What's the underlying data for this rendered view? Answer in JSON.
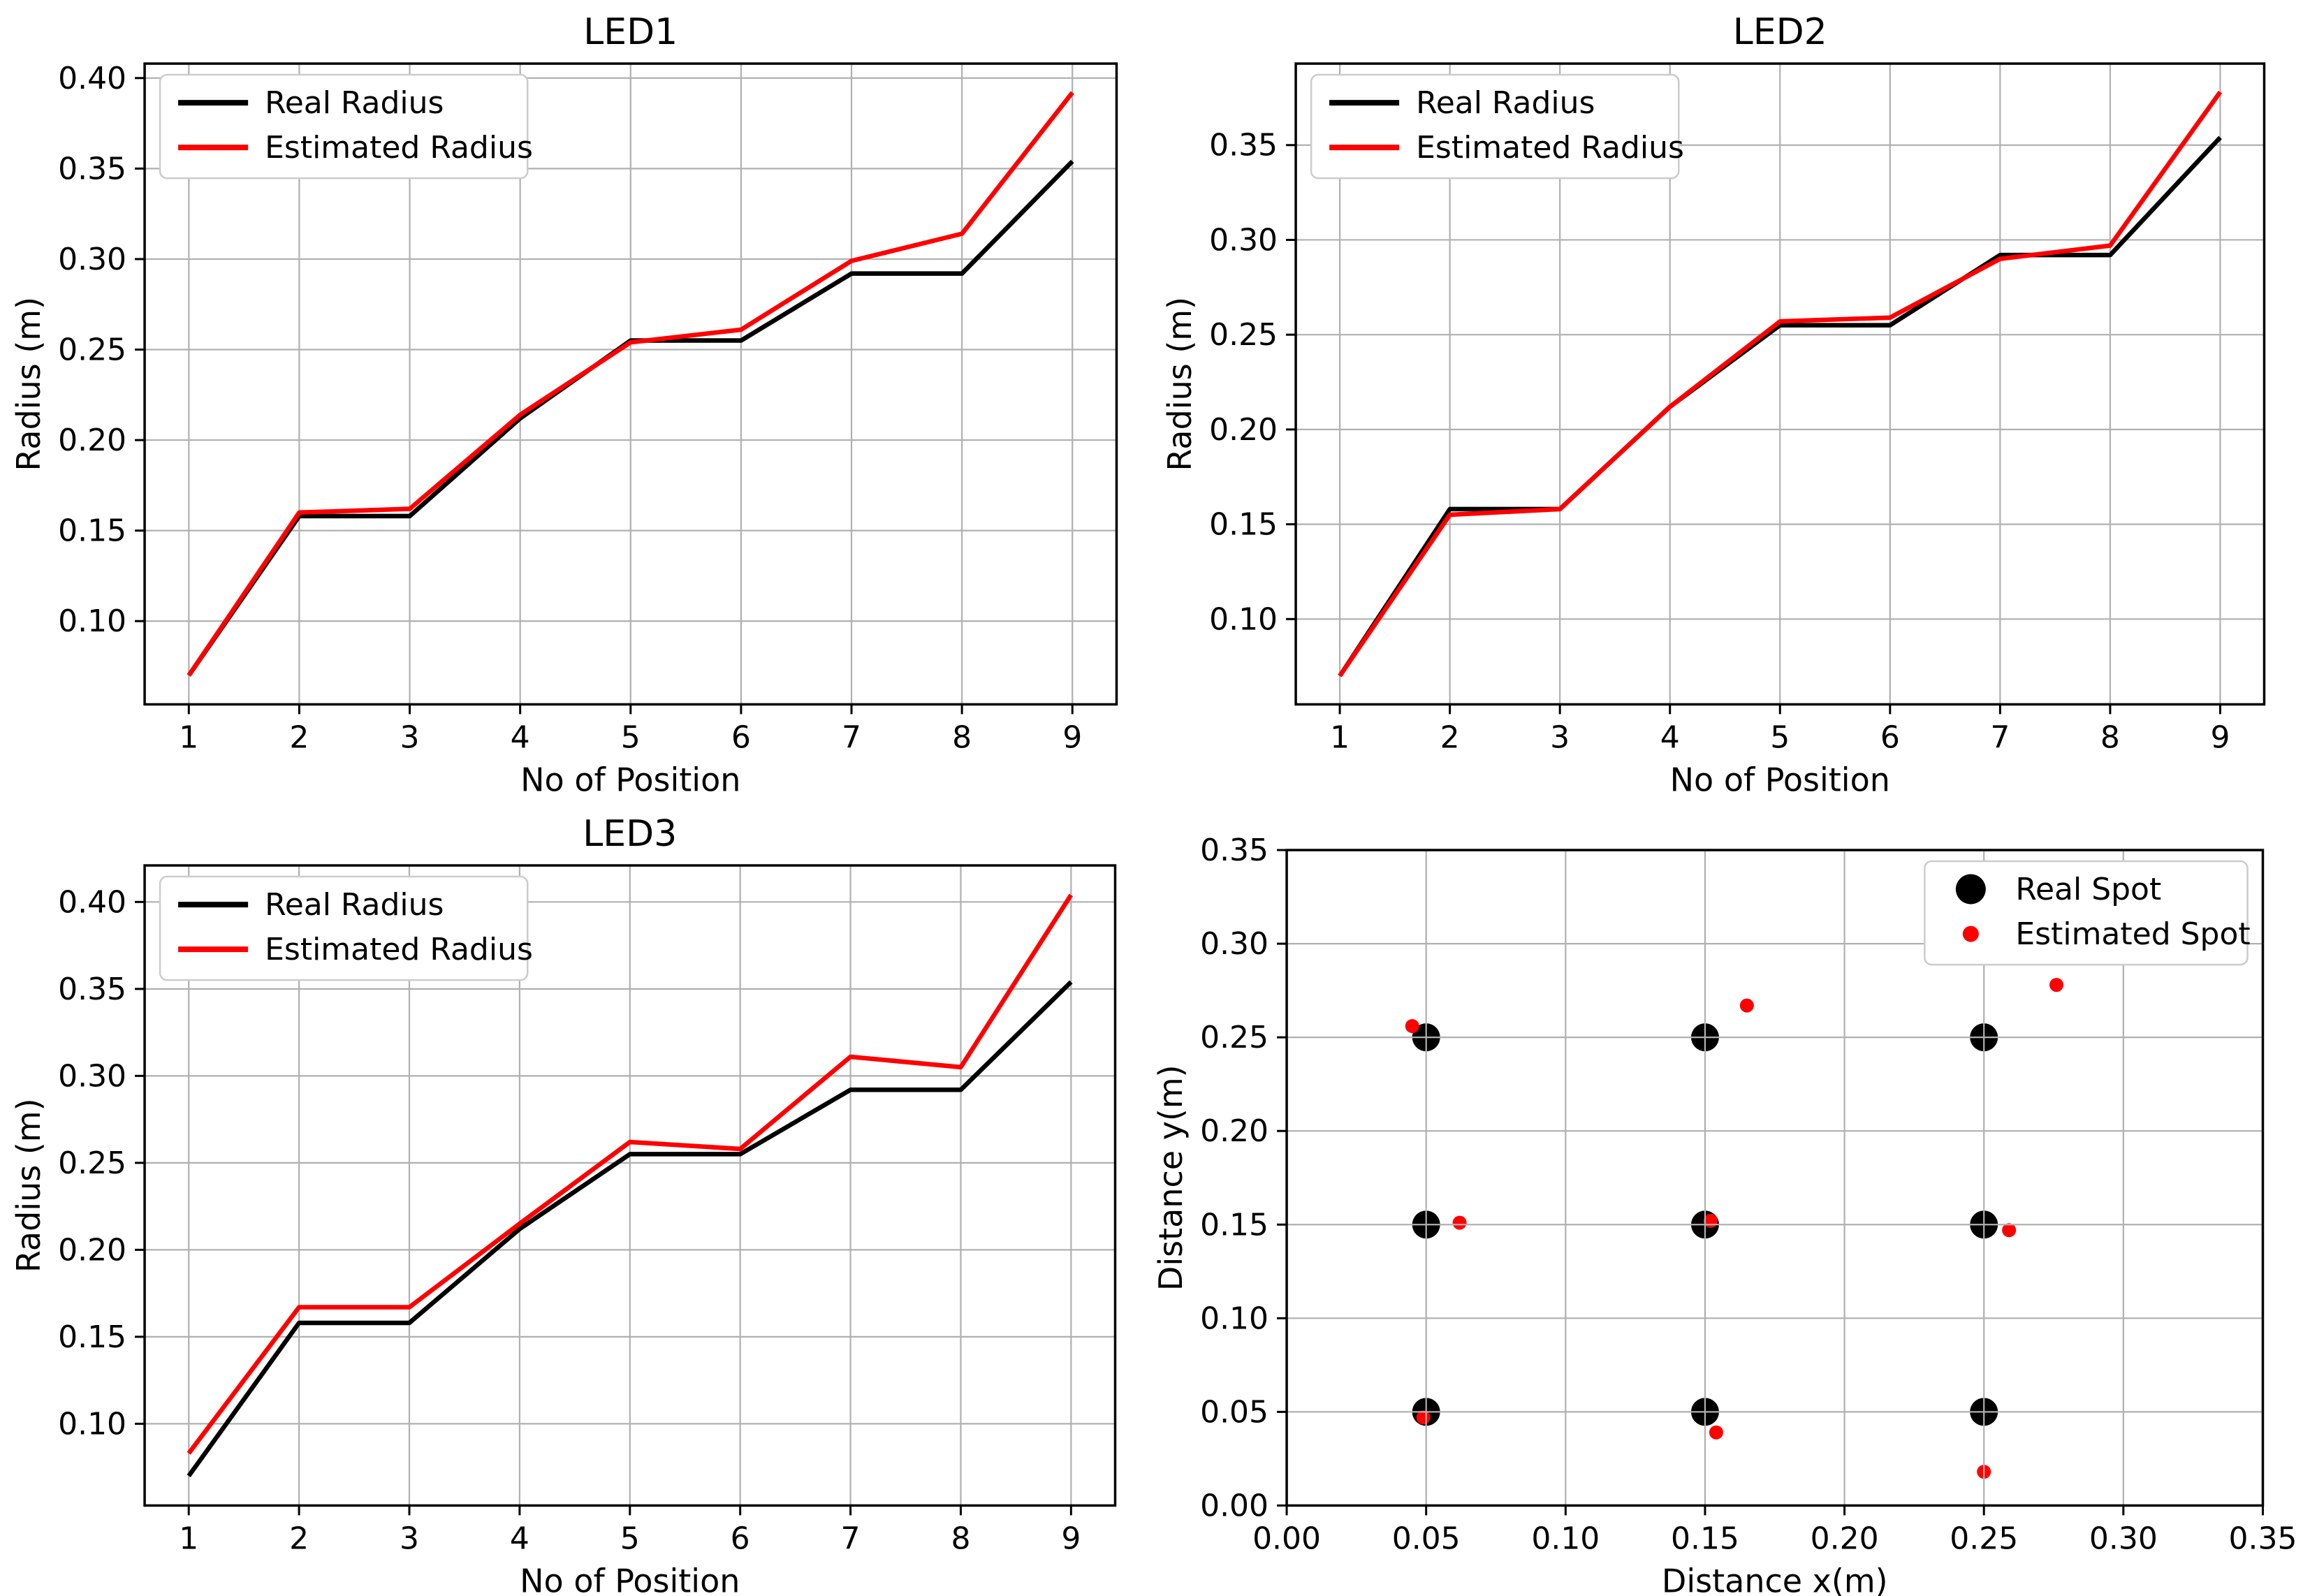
{
  "figure": {
    "background": "#ffffff",
    "grid_color": "#b0b0b0",
    "axis_color": "#000000",
    "legend_border_color": "#cccccc",
    "real_color": "#000000",
    "estimated_color": "#ff0000"
  },
  "chart_data": [
    {
      "id": "led1",
      "type": "line",
      "title": "LED1",
      "xlabel": "No of Position",
      "ylabel": "Radius (m)",
      "x": [
        1,
        2,
        3,
        4,
        5,
        6,
        7,
        8,
        9
      ],
      "xtick_labels": [
        "1",
        "2",
        "3",
        "4",
        "5",
        "6",
        "7",
        "8",
        "9"
      ],
      "xticks": [
        1,
        2,
        3,
        4,
        5,
        6,
        7,
        8,
        9
      ],
      "yticks": [
        0.1,
        0.15,
        0.2,
        0.25,
        0.3,
        0.35,
        0.4
      ],
      "ytick_labels": [
        "0.10",
        "0.15",
        "0.20",
        "0.25",
        "0.30",
        "0.35",
        "0.40"
      ],
      "xlim": [
        0.6,
        9.4
      ],
      "ylim": [
        0.054,
        0.408
      ],
      "grid": true,
      "legend_position": "top-left",
      "series": [
        {
          "name": "Real Radius",
          "color": "#000000",
          "values": [
            0.07,
            0.158,
            0.158,
            0.212,
            0.255,
            0.255,
            0.292,
            0.292,
            0.354
          ]
        },
        {
          "name": "Estimated Radius",
          "color": "#ff0000",
          "values": [
            0.07,
            0.16,
            0.162,
            0.214,
            0.254,
            0.261,
            0.299,
            0.314,
            0.392
          ]
        }
      ]
    },
    {
      "id": "led2",
      "type": "line",
      "title": "LED2",
      "xlabel": "No of Position",
      "ylabel": "Radius (m)",
      "x": [
        1,
        2,
        3,
        4,
        5,
        6,
        7,
        8,
        9
      ],
      "xtick_labels": [
        "1",
        "2",
        "3",
        "4",
        "5",
        "6",
        "7",
        "8",
        "9"
      ],
      "xticks": [
        1,
        2,
        3,
        4,
        5,
        6,
        7,
        8,
        9
      ],
      "yticks": [
        0.1,
        0.15,
        0.2,
        0.25,
        0.3,
        0.35
      ],
      "ytick_labels": [
        "0.10",
        "0.15",
        "0.20",
        "0.25",
        "0.30",
        "0.35"
      ],
      "xlim": [
        0.6,
        9.4
      ],
      "ylim": [
        0.055,
        0.393
      ],
      "grid": true,
      "legend_position": "top-left",
      "series": [
        {
          "name": "Real Radius",
          "color": "#000000",
          "values": [
            0.07,
            0.158,
            0.158,
            0.212,
            0.255,
            0.255,
            0.292,
            0.292,
            0.354
          ]
        },
        {
          "name": "Estimated Radius",
          "color": "#ff0000",
          "values": [
            0.07,
            0.155,
            0.158,
            0.212,
            0.257,
            0.259,
            0.29,
            0.297,
            0.378
          ]
        }
      ]
    },
    {
      "id": "led3",
      "type": "line",
      "title": "LED3",
      "xlabel": "No of Position",
      "ylabel": "Radius (m)",
      "x": [
        1,
        2,
        3,
        4,
        5,
        6,
        7,
        8,
        9
      ],
      "xtick_labels": [
        "1",
        "2",
        "3",
        "4",
        "5",
        "6",
        "7",
        "8",
        "9"
      ],
      "xticks": [
        1,
        2,
        3,
        4,
        5,
        6,
        7,
        8,
        9
      ],
      "yticks": [
        0.1,
        0.15,
        0.2,
        0.25,
        0.3,
        0.35,
        0.4
      ],
      "ytick_labels": [
        "0.10",
        "0.15",
        "0.20",
        "0.25",
        "0.30",
        "0.35",
        "0.40"
      ],
      "xlim": [
        0.6,
        9.4
      ],
      "ylim": [
        0.053,
        0.421
      ],
      "grid": true,
      "legend_position": "top-left",
      "series": [
        {
          "name": "Real Radius",
          "color": "#000000",
          "values": [
            0.07,
            0.158,
            0.158,
            0.212,
            0.255,
            0.255,
            0.292,
            0.292,
            0.354
          ]
        },
        {
          "name": "Estimated Radius",
          "color": "#ff0000",
          "values": [
            0.083,
            0.167,
            0.167,
            0.215,
            0.262,
            0.258,
            0.311,
            0.305,
            0.404
          ]
        }
      ]
    },
    {
      "id": "spots",
      "type": "scatter",
      "title": "",
      "xlabel": "Distance x(m)",
      "ylabel": "Distance y(m)",
      "xticks": [
        0.0,
        0.05,
        0.1,
        0.15,
        0.2,
        0.25,
        0.3,
        0.35
      ],
      "xtick_labels": [
        "0.00",
        "0.05",
        "0.10",
        "0.15",
        "0.20",
        "0.25",
        "0.30",
        "0.35"
      ],
      "yticks": [
        0.0,
        0.05,
        0.1,
        0.15,
        0.2,
        0.25,
        0.3,
        0.35
      ],
      "ytick_labels": [
        "0.00",
        "0.05",
        "0.10",
        "0.15",
        "0.20",
        "0.25",
        "0.30",
        "0.35"
      ],
      "xlim": [
        0.0,
        0.35
      ],
      "ylim": [
        0.0,
        0.35
      ],
      "grid": true,
      "grid_over_markers": true,
      "legend_position": "top-right",
      "series": [
        {
          "name": "Real Spot",
          "color": "#000000",
          "marker_radius": 20,
          "points": [
            [
              0.05,
              0.05
            ],
            [
              0.15,
              0.05
            ],
            [
              0.25,
              0.05
            ],
            [
              0.05,
              0.15
            ],
            [
              0.15,
              0.15
            ],
            [
              0.25,
              0.15
            ],
            [
              0.05,
              0.25
            ],
            [
              0.15,
              0.25
            ],
            [
              0.25,
              0.25
            ]
          ]
        },
        {
          "name": "Estimated Spot",
          "color": "#ff0000",
          "marker_radius": 10,
          "points": [
            [
              0.049,
              0.047
            ],
            [
              0.154,
              0.039
            ],
            [
              0.25,
              0.018
            ],
            [
              0.062,
              0.151
            ],
            [
              0.152,
              0.152
            ],
            [
              0.259,
              0.147
            ],
            [
              0.045,
              0.256
            ],
            [
              0.165,
              0.267
            ],
            [
              0.276,
              0.278
            ]
          ]
        }
      ]
    }
  ]
}
